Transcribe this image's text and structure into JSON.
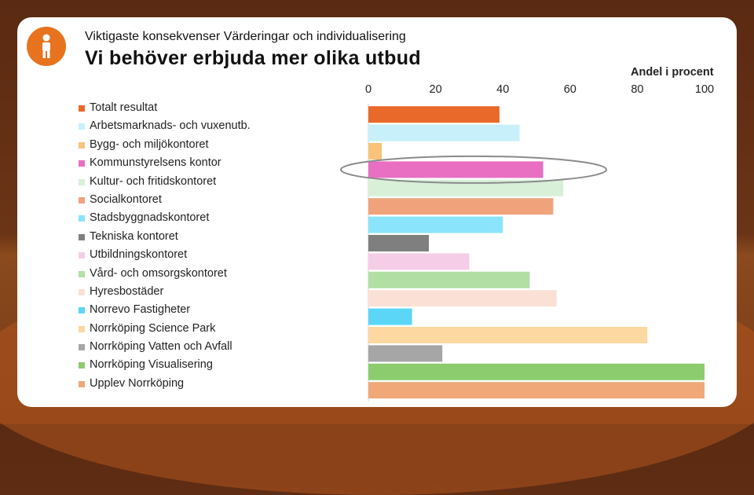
{
  "header": {
    "subtitle": "Viktigaste konsekvenser Värderingar och individualisering",
    "title": "Vi behöver erbjuda mer olika utbud"
  },
  "logo": {
    "icon": "person-icon",
    "color": "#e8731e"
  },
  "chart_data": {
    "type": "bar",
    "orientation": "horizontal",
    "title": "Vi behöver erbjuda mer olika utbud",
    "xlabel": "Andel i procent",
    "ylabel": "",
    "xlim": [
      0,
      100
    ],
    "xticks": [
      0,
      20,
      40,
      60,
      80,
      100
    ],
    "grid": false,
    "legend_position": "left",
    "highlight_category_index": 3,
    "categories": [
      "Totalt resultat",
      "Arbetsmarknads- och vuxenutb.",
      "Bygg- och miljökontoret",
      "Kommunstyrelsens kontor",
      "Kultur- och fritidskontoret",
      "Socialkontoret",
      "Stadsbyggnadskontoret",
      "Tekniska kontoret",
      "Utbildningskontoret",
      "Vård- och omsorgskontoret",
      "Hyresbostäder",
      "Norrevo Fastigheter",
      "Norrköping Science Park",
      "Norrköping Vatten och Avfall",
      "Norrköping Visualisering",
      "Upplev Norrköping"
    ],
    "values": [
      39,
      45,
      4,
      52,
      58,
      55,
      40,
      18,
      30,
      48,
      56,
      13,
      83,
      22,
      100,
      100
    ],
    "colors": [
      "#e8692a",
      "#c8f0fb",
      "#f9c37a",
      "#e86fc2",
      "#d8f0d8",
      "#f0a37b",
      "#8ae4fb",
      "#7f7f7f",
      "#f6cde6",
      "#b2dfa3",
      "#fbe1d5",
      "#5cd6f7",
      "#fdd8a0",
      "#a6a6a6",
      "#8ccc6e",
      "#f0a878"
    ]
  }
}
